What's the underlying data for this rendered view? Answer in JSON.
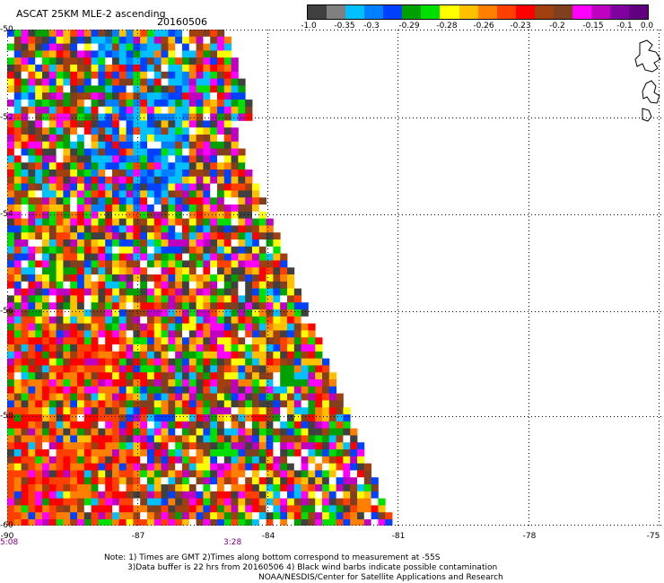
{
  "header": {
    "title": "ASCAT 25KM MLE-2 ascending",
    "date": "20160506"
  },
  "colorbar": {
    "colors": [
      "#404040",
      "#808080",
      "#00c0ff",
      "#0080ff",
      "#0040ff",
      "#00a000",
      "#00e000",
      "#ffff00",
      "#ffc000",
      "#ff8000",
      "#ff4000",
      "#ff0000",
      "#a04010",
      "#804020",
      "#ff00ff",
      "#c000c0",
      "#8000a0",
      "#600080"
    ],
    "labels": [
      "-1.0",
      "-0.35",
      "-0.3",
      "-0.29",
      "-0.28",
      "-0.26",
      "-0.23",
      "-0.2",
      "-0.15",
      "-0.1",
      "0.0"
    ]
  },
  "axes": {
    "x_ticks": [
      "-90",
      "-87",
      "-84",
      "-81",
      "-78",
      "-75"
    ],
    "y_ticks": [
      "-50",
      "-52",
      "-54",
      "-56",
      "-58",
      "-60"
    ]
  },
  "times": [
    "5:08",
    "3:28"
  ],
  "notes": [
    "Note: 1) Times are GMT 2)Times along bottom correspond to measurement at -55S",
    "3)Data buffer is 22 hrs from 20160506 4) Black wind barbs indicate possible contamination",
    "NOAA/NESDIS/Center for Satellite Applications and Research"
  ]
}
